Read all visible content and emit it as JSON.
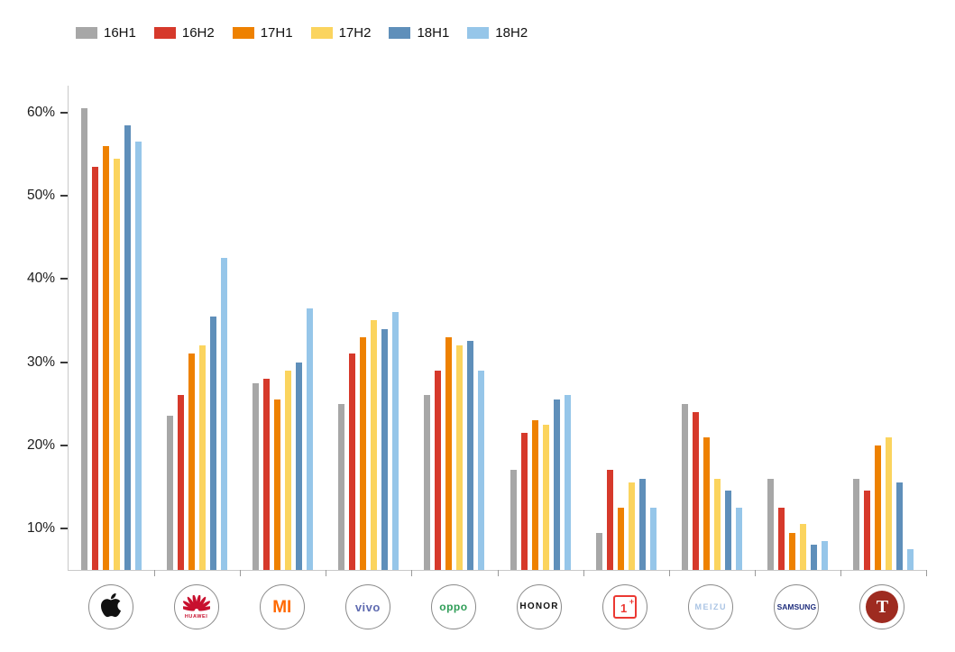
{
  "chart_data": {
    "type": "bar",
    "title": "",
    "xlabel": "",
    "ylabel": "",
    "ylim": [
      5,
      63.25
    ],
    "grid": false,
    "legend_position": "top-left",
    "yticks": [
      {
        "value": 10,
        "label": "10%"
      },
      {
        "value": 20,
        "label": "20%"
      },
      {
        "value": 30,
        "label": "30%"
      },
      {
        "value": 40,
        "label": "40%"
      },
      {
        "value": 50,
        "label": "50%"
      },
      {
        "value": 60,
        "label": "60%"
      }
    ],
    "categories": [
      "Apple",
      "HUAWEI",
      "MI",
      "vivo",
      "OPPO",
      "HONOR",
      "OnePlus",
      "MEIZU",
      "SAMSUNG",
      "Smartisan"
    ],
    "series": [
      {
        "name": "16H1",
        "color": "#a7a7a7",
        "values": [
          60.5,
          23.5,
          27.5,
          25.0,
          26.0,
          17.0,
          9.5,
          25.0,
          16.0,
          16.0
        ]
      },
      {
        "name": "16H2",
        "color": "#d6392b",
        "values": [
          53.5,
          26.0,
          28.0,
          31.0,
          29.0,
          21.5,
          17.0,
          24.0,
          12.5,
          14.5
        ]
      },
      {
        "name": "17H1",
        "color": "#ee8100",
        "values": [
          56.0,
          31.0,
          25.5,
          33.0,
          33.0,
          23.0,
          12.5,
          21.0,
          9.5,
          20.0
        ]
      },
      {
        "name": "17H2",
        "color": "#fbd45e",
        "values": [
          54.5,
          32.0,
          29.0,
          35.0,
          32.0,
          22.5,
          15.5,
          16.0,
          10.5,
          21.0
        ]
      },
      {
        "name": "18H1",
        "color": "#5f8fba",
        "values": [
          58.5,
          35.5,
          30.0,
          34.0,
          32.5,
          25.5,
          16.0,
          14.5,
          8.0,
          15.5
        ]
      },
      {
        "name": "18H2",
        "color": "#96c6e9",
        "values": [
          56.5,
          42.5,
          36.5,
          36.0,
          29.0,
          26.0,
          12.5,
          12.5,
          8.5,
          7.5
        ]
      }
    ]
  },
  "brands": [
    {
      "id": "apple",
      "kind": "apple",
      "text": "",
      "color": "#111111"
    },
    {
      "id": "huawei",
      "kind": "huawei",
      "text": "HUAWEI",
      "color": "#c8102e"
    },
    {
      "id": "xiaomi",
      "kind": "text",
      "text": "MI",
      "color": "#ff6900",
      "size": 19,
      "weight": 900,
      "spacing": 0
    },
    {
      "id": "vivo",
      "kind": "text",
      "text": "vivo",
      "color": "#5f6bb0",
      "size": 13,
      "weight": 700,
      "spacing": 0.5
    },
    {
      "id": "oppo",
      "kind": "text",
      "text": "oppo",
      "color": "#2f9d57",
      "size": 12,
      "weight": 700,
      "spacing": 0.5
    },
    {
      "id": "honor",
      "kind": "text",
      "text": "HONOR",
      "color": "#111111",
      "size": 10,
      "weight": 700,
      "spacing": 1.2
    },
    {
      "id": "oneplus",
      "kind": "oneplus",
      "text": "1+",
      "color": "#eb3832"
    },
    {
      "id": "meizu",
      "kind": "text",
      "text": "MEIZU",
      "color": "#aac4e4",
      "size": 9,
      "weight": 600,
      "spacing": 1.5
    },
    {
      "id": "samsung",
      "kind": "text",
      "text": "SAMSUNG",
      "color": "#1f2e7d",
      "size": 8.5,
      "weight": 800,
      "spacing": 0
    },
    {
      "id": "smartisan",
      "kind": "smartisan",
      "text": "T",
      "color": "#9e2b20"
    }
  ]
}
